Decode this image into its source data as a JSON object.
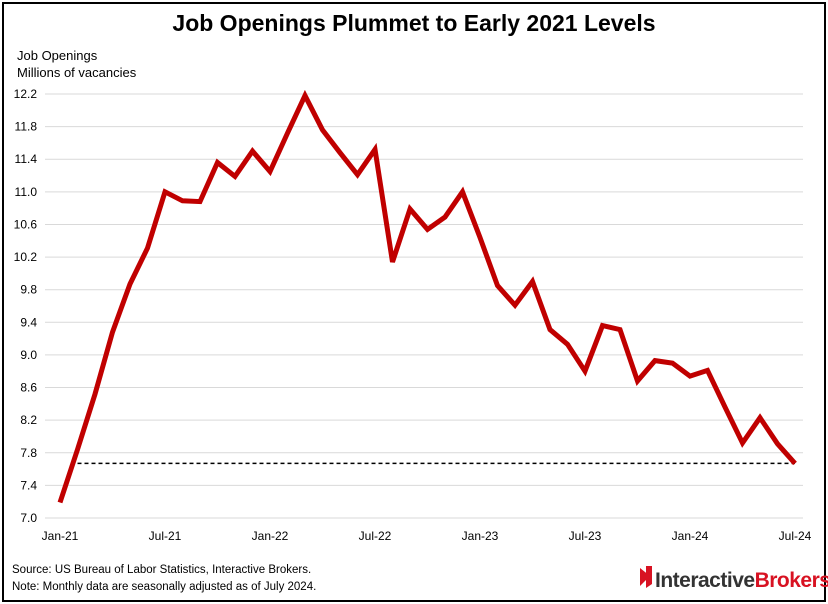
{
  "colors": {
    "line": "#c00000",
    "reference": "#000000",
    "grid": "#d9d9d9",
    "brand_red": "#d81222",
    "brand_dark": "#333333"
  },
  "chart_data": {
    "type": "line",
    "title": "Job Openings Plummet to Early 2021 Levels",
    "ylabel_line1": "Job Openings",
    "ylabel_line2": "Millions of vacancies",
    "ylim": [
      7.0,
      12.2
    ],
    "yticks": [
      "12.2",
      "11.8",
      "11.4",
      "11.0",
      "10.6",
      "10.2",
      "9.8",
      "9.4",
      "9.0",
      "8.6",
      "8.2",
      "7.8",
      "7.4",
      "7.0"
    ],
    "xticks": [
      {
        "label": "Jan-21",
        "index": 0
      },
      {
        "label": "Jul-21",
        "index": 6
      },
      {
        "label": "Jan-22",
        "index": 12
      },
      {
        "label": "Jul-22",
        "index": 18
      },
      {
        "label": "Jan-23",
        "index": 24
      },
      {
        "label": "Jul-23",
        "index": 30
      },
      {
        "label": "Jan-24",
        "index": 36
      },
      {
        "label": "Jul-24",
        "index": 42
      }
    ],
    "grid": "horizontal",
    "series": [
      {
        "x": [
          "Jan-21",
          "Feb-21",
          "Mar-21",
          "Apr-21",
          "May-21",
          "Jun-21",
          "Jul-21",
          "Aug-21",
          "Sep-21",
          "Oct-21",
          "Nov-21",
          "Dec-21",
          "Jan-22",
          "Feb-22",
          "Mar-22",
          "Apr-22",
          "May-22",
          "Jun-22",
          "Jul-22",
          "Aug-22",
          "Sep-22",
          "Oct-22",
          "Nov-22",
          "Dec-22",
          "Jan-23",
          "Feb-23",
          "Mar-23",
          "Apr-23",
          "May-23",
          "Jun-23",
          "Jul-23",
          "Aug-23",
          "Sep-23",
          "Oct-23",
          "Nov-23",
          "Dec-23",
          "Jan-24",
          "Feb-24",
          "Mar-24",
          "Apr-24",
          "May-24",
          "Jun-24",
          "Jul-24"
        ],
        "values": [
          7.19,
          7.84,
          8.52,
          9.28,
          9.87,
          10.31,
          11.0,
          10.89,
          10.88,
          11.36,
          11.19,
          11.5,
          11.25,
          11.72,
          12.18,
          11.76,
          11.48,
          11.21,
          11.52,
          10.14,
          10.79,
          10.54,
          10.69,
          11.0,
          10.44,
          9.85,
          9.61,
          9.9,
          9.31,
          9.13,
          8.8,
          9.36,
          9.31,
          8.68,
          8.93,
          8.9,
          8.74,
          8.81,
          8.36,
          7.92,
          8.23,
          7.91,
          7.67
        ]
      }
    ],
    "reference_line": {
      "value": 7.67,
      "style": "dashed",
      "from_index": 1,
      "to_index": 42
    }
  },
  "footer": {
    "source": "Source: US Bureau of Labor Statistics, Interactive Brokers.",
    "note": "Note: Monthly data are seasonally adjusted as of July 2024."
  },
  "brand": {
    "part1": "Interactive",
    "part2": "Brokers",
    "icon": "interactive-brokers-logo-icon"
  }
}
